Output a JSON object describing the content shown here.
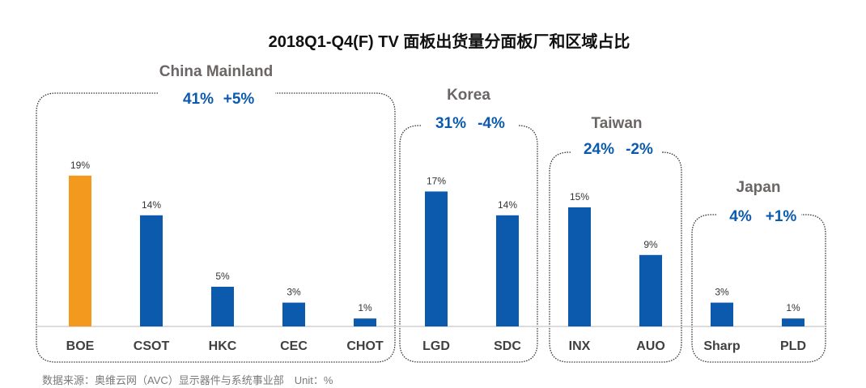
{
  "chart_data": {
    "type": "bar",
    "title": "2018Q1-Q4(F) TV 面板出货量分面板厂和区域占比",
    "unit": "%",
    "categories": [
      "BOE",
      "CSOT",
      "HKC",
      "CEC",
      "CHOT",
      "LGD",
      "SDC",
      "INX",
      "AUO",
      "Sharp",
      "PLD"
    ],
    "values": [
      19,
      14,
      5,
      3,
      1,
      17,
      14,
      15,
      9,
      3,
      1
    ],
    "value_labels": [
      "19%",
      "14%",
      "5%",
      "3%",
      "1%",
      "17%",
      "14%",
      "15%",
      "9%",
      "3%",
      "1%"
    ],
    "highlight": "BOE",
    "groups": [
      {
        "name": "China Mainland",
        "share": "41%",
        "change": "+5%",
        "members": [
          "BOE",
          "CSOT",
          "HKC",
          "CEC",
          "CHOT"
        ]
      },
      {
        "name": "Korea",
        "share": "31%",
        "change": "-4%",
        "members": [
          "LGD",
          "SDC"
        ]
      },
      {
        "name": "Taiwan",
        "share": "24%",
        "change": "-2%",
        "members": [
          "INX",
          "AUO"
        ]
      },
      {
        "name": "Japan",
        "share": "4%",
        "change": "+1%",
        "members": [
          "Sharp",
          "PLD"
        ]
      }
    ],
    "ylim": [
      0,
      20
    ],
    "grid": false
  },
  "source": "数据来源：奥维云网（AVC）显示器件与系统事业部　Unit：%",
  "colors": {
    "bar": "#0b5aad",
    "highlight": "#f39a1e",
    "stat": "#0b5aad",
    "region": "#6b6565"
  }
}
